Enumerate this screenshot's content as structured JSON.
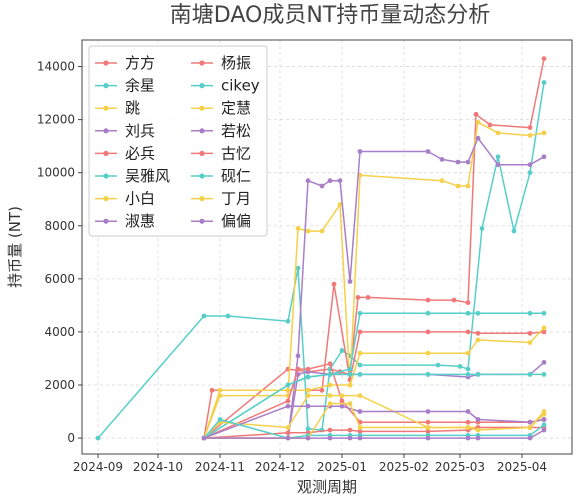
{
  "chart_data": {
    "type": "line",
    "title": "南塘DAO成员NT持币量动态分析",
    "xlabel": "观测周期",
    "ylabel": "持币量 (NT)",
    "x_axis_type": "date",
    "xlim": [
      "2024-08-24",
      "2025-04-26"
    ],
    "ylim": [
      -600,
      15000
    ],
    "x_ticks": [
      {
        "date": "2024-09-01",
        "label": "2024-09"
      },
      {
        "date": "2024-10-01",
        "label": "2024-10"
      },
      {
        "date": "2024-11-01",
        "label": "2024-11"
      },
      {
        "date": "2024-12-01",
        "label": "2024-12"
      },
      {
        "date": "2025-01-01",
        "label": "2025-01"
      },
      {
        "date": "2025-02-01",
        "label": "2025-02"
      },
      {
        "date": "2025-03-01",
        "label": "2025-03"
      },
      {
        "date": "2025-04-01",
        "label": "2025-04"
      }
    ],
    "y_ticks": [
      0,
      2000,
      4000,
      6000,
      8000,
      10000,
      12000,
      14000
    ],
    "grid": true,
    "legend_position": "top-left",
    "legend_columns": 2,
    "series": [
      {
        "name": "方方",
        "color": "#f07878",
        "x": [
          "2024-10-24",
          "2024-12-05",
          "2024-12-15",
          "2024-12-26",
          "2024-12-31",
          "2025-01-05",
          "2025-01-09",
          "2025-01-14",
          "2025-02-13",
          "2025-02-26",
          "2025-03-05",
          "2025-03-09",
          "2025-03-16",
          "2025-04-05",
          "2025-04-12"
        ],
        "y": [
          0,
          2600,
          2500,
          2600,
          2500,
          2400,
          5300,
          5300,
          5200,
          5200,
          5100,
          12200,
          11800,
          11700,
          14300
        ]
      },
      {
        "name": "余星",
        "color": "#57cfc8",
        "x": [
          "2024-09-01",
          "2024-10-24",
          "2024-11-05",
          "2024-12-05",
          "2024-12-10",
          "2024-12-15",
          "2024-12-22",
          "2024-12-26",
          "2025-01-01",
          "2025-01-05",
          "2025-01-10",
          "2025-02-18",
          "2025-03-01",
          "2025-03-05",
          "2025-03-12",
          "2025-03-20",
          "2025-03-28",
          "2025-04-05",
          "2025-04-12"
        ],
        "y": [
          0,
          4600,
          4600,
          4400,
          6400,
          350,
          300,
          2600,
          3300,
          3100,
          2750,
          2750,
          2700,
          2600,
          7900,
          10600,
          7800,
          10000,
          13400
        ]
      },
      {
        "name": "跳",
        "color": "#f5d04a",
        "x": [
          "2024-10-24",
          "2024-11-01",
          "2024-12-05",
          "2024-12-10",
          "2024-12-15",
          "2024-12-22",
          "2024-12-31",
          "2025-01-05",
          "2025-01-10",
          "2025-02-20",
          "2025-02-28",
          "2025-03-05",
          "2025-03-10",
          "2025-03-20",
          "2025-04-05",
          "2025-04-12"
        ],
        "y": [
          0,
          1600,
          1600,
          7900,
          7800,
          7800,
          8800,
          2000,
          9900,
          9700,
          9500,
          9500,
          11900,
          11500,
          11400,
          11500
        ]
      },
      {
        "name": "刘兵",
        "color": "#a97ec9",
        "x": [
          "2024-10-24",
          "2024-12-05",
          "2024-12-10",
          "2024-12-15",
          "2024-12-22",
          "2024-12-26",
          "2024-12-31",
          "2025-01-05",
          "2025-01-10",
          "2025-02-13",
          "2025-02-20",
          "2025-02-28",
          "2025-03-05",
          "2025-03-10",
          "2025-03-20",
          "2025-04-05",
          "2025-04-12"
        ],
        "y": [
          0,
          0,
          3100,
          9700,
          9500,
          9700,
          9700,
          5900,
          10800,
          10800,
          10500,
          10400,
          10400,
          11300,
          10300,
          10300,
          10600
        ]
      },
      {
        "name": "必兵",
        "color": "#f07878",
        "x": [
          "2024-10-24",
          "2024-10-28",
          "2024-12-05",
          "2024-12-15",
          "2024-12-22",
          "2024-12-28",
          "2025-01-05",
          "2025-01-10",
          "2025-02-13",
          "2025-03-05",
          "2025-03-10",
          "2025-04-05",
          "2025-04-12"
        ],
        "y": [
          0,
          1800,
          1800,
          1800,
          1800,
          5800,
          2200,
          4000,
          4000,
          4000,
          3950,
          3950,
          4000
        ]
      },
      {
        "name": "吴雅风",
        "color": "#57cfc8",
        "x": [
          "2024-10-24",
          "2024-12-05",
          "2024-12-15",
          "2024-12-26",
          "2025-01-05",
          "2025-01-10",
          "2025-02-13",
          "2025-03-05",
          "2025-03-10",
          "2025-04-05",
          "2025-04-12"
        ],
        "y": [
          0,
          2000,
          2300,
          2400,
          2600,
          4700,
          4700,
          4700,
          4700,
          4700,
          4700
        ]
      },
      {
        "name": "小白",
        "color": "#f5d04a",
        "x": [
          "2024-10-24",
          "2024-11-01",
          "2024-12-05",
          "2024-12-15",
          "2024-12-26",
          "2025-01-05",
          "2025-01-10",
          "2025-02-13",
          "2025-03-05",
          "2025-03-10",
          "2025-04-05",
          "2025-04-12"
        ],
        "y": [
          0,
          1800,
          1800,
          1800,
          2000,
          2000,
          3200,
          3200,
          3200,
          3700,
          3600,
          4150
        ]
      },
      {
        "name": "淑惠",
        "color": "#a97ec9",
        "x": [
          "2024-10-24",
          "2024-12-05",
          "2024-12-10",
          "2024-12-15",
          "2024-12-26",
          "2025-01-05",
          "2025-01-10",
          "2025-02-13",
          "2025-03-05",
          "2025-03-10",
          "2025-04-05",
          "2025-04-12"
        ],
        "y": [
          0,
          0,
          2400,
          2500,
          2400,
          2400,
          2400,
          2400,
          2300,
          2400,
          2400,
          2850
        ]
      },
      {
        "name": "杨振",
        "color": "#f07878",
        "x": [
          "2024-10-24",
          "2024-12-05",
          "2024-12-10",
          "2024-12-15",
          "2024-12-26",
          "2025-01-01",
          "2025-01-10",
          "2025-02-13",
          "2025-03-05",
          "2025-03-10",
          "2025-04-05",
          "2025-04-12"
        ],
        "y": [
          0,
          1400,
          2600,
          2600,
          2800,
          1400,
          600,
          600,
          600,
          600,
          600,
          700
        ]
      },
      {
        "name": "cikey",
        "color": "#57cfc8",
        "x": [
          "2024-10-24",
          "2024-12-05",
          "2024-12-15",
          "2024-12-26",
          "2025-01-05",
          "2025-01-10",
          "2025-02-13",
          "2025-03-05",
          "2025-03-10",
          "2025-04-05",
          "2025-04-12"
        ],
        "y": [
          0,
          2000,
          2300,
          2400,
          2400,
          2400,
          2400,
          2400,
          2400,
          2400,
          2400
        ]
      },
      {
        "name": "定慧",
        "color": "#f5d04a",
        "x": [
          "2024-10-24",
          "2024-11-01",
          "2024-12-05",
          "2024-12-15",
          "2024-12-26",
          "2025-01-01",
          "2025-01-10",
          "2025-02-13",
          "2025-03-05",
          "2025-03-10",
          "2025-04-05",
          "2025-04-12"
        ],
        "y": [
          0,
          600,
          400,
          1600,
          1600,
          1600,
          1600,
          400,
          400,
          400,
          400,
          900
        ]
      },
      {
        "name": "若松",
        "color": "#a97ec9",
        "x": [
          "2024-10-24",
          "2024-12-05",
          "2024-12-15",
          "2024-12-26",
          "2025-01-01",
          "2025-01-10",
          "2025-02-13",
          "2025-03-05",
          "2025-03-10",
          "2025-04-05",
          "2025-04-12"
        ],
        "y": [
          0,
          1200,
          1200,
          1200,
          1200,
          1000,
          1000,
          1000,
          700,
          600,
          700
        ]
      },
      {
        "name": "古忆",
        "color": "#f07878",
        "x": [
          "2024-10-24",
          "2024-12-05",
          "2024-12-15",
          "2024-12-26",
          "2025-01-05",
          "2025-01-10",
          "2025-02-13",
          "2025-03-05",
          "2025-03-10",
          "2025-04-05",
          "2025-04-12"
        ],
        "y": [
          0,
          200,
          200,
          300,
          300,
          250,
          250,
          300,
          400,
          400,
          400
        ]
      },
      {
        "name": "砚仁",
        "color": "#57cfc8",
        "x": [
          "2024-10-24",
          "2024-11-01",
          "2024-12-05",
          "2024-12-15",
          "2024-12-26",
          "2025-01-05",
          "2025-01-10",
          "2025-02-13",
          "2025-03-05",
          "2025-03-10",
          "2025-04-05",
          "2025-04-12"
        ],
        "y": [
          0,
          700,
          0,
          100,
          100,
          100,
          100,
          100,
          100,
          100,
          100,
          500
        ]
      },
      {
        "name": "丁月",
        "color": "#f5d04a",
        "x": [
          "2024-10-24",
          "2024-12-05",
          "2024-12-15",
          "2024-12-26",
          "2025-01-05",
          "2025-01-10",
          "2025-02-13",
          "2025-03-05",
          "2025-03-10",
          "2025-04-05",
          "2025-04-12"
        ],
        "y": [
          0,
          0,
          0,
          1300,
          1300,
          400,
          400,
          400,
          300,
          400,
          1000
        ]
      },
      {
        "name": "偏偏",
        "color": "#a97ec9",
        "x": [
          "2024-10-24",
          "2024-12-05",
          "2024-12-15",
          "2024-12-26",
          "2025-01-05",
          "2025-01-10",
          "2025-02-13",
          "2025-03-05",
          "2025-03-10",
          "2025-04-05",
          "2025-04-12"
        ],
        "y": [
          0,
          0,
          0,
          0,
          0,
          0,
          0,
          0,
          0,
          0,
          300
        ]
      }
    ]
  }
}
